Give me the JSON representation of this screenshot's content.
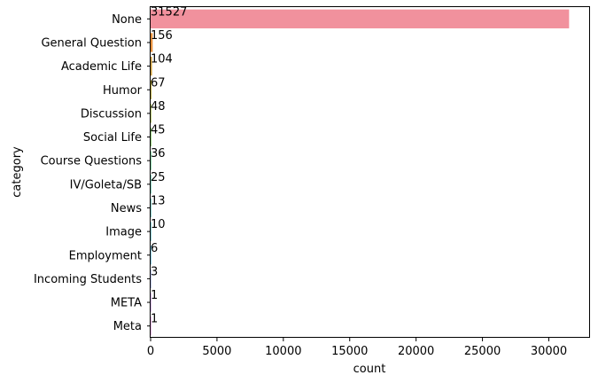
{
  "chart_data": {
    "type": "bar",
    "orientation": "horizontal",
    "categories": [
      "None",
      "General Question",
      "Academic Life",
      "Humor",
      "Discussion",
      "Social Life",
      "Course Questions",
      "IV/Goleta/SB",
      "News",
      "Image",
      "Employment",
      "Incoming Students",
      "META",
      "Meta"
    ],
    "values": [
      31527,
      156,
      104,
      67,
      48,
      45,
      36,
      25,
      13,
      10,
      6,
      3,
      1,
      1
    ],
    "data_labels": [
      "31527",
      "156",
      "104",
      "67",
      "48",
      "45",
      "36",
      "25",
      "13",
      "10",
      "6",
      "3",
      "1",
      "1"
    ],
    "xlabel": "count",
    "ylabel": "category",
    "xlim": [
      0,
      33104
    ],
    "xticks": [
      0,
      5000,
      10000,
      15000,
      20000,
      25000,
      30000
    ],
    "xtick_labels": [
      "0",
      "5000",
      "10000",
      "15000",
      "20000",
      "25000",
      "30000"
    ],
    "grid": false,
    "legend": "none",
    "colors": [
      "#f1919d",
      "#e7913f",
      "#cd9d3a",
      "#b4a537",
      "#96ad36",
      "#5ab636",
      "#36b46c",
      "#37b192",
      "#39aea5",
      "#3bacb8",
      "#3ea8cf",
      "#8fa0ea",
      "#c08df0",
      "#ea85e1"
    ]
  }
}
